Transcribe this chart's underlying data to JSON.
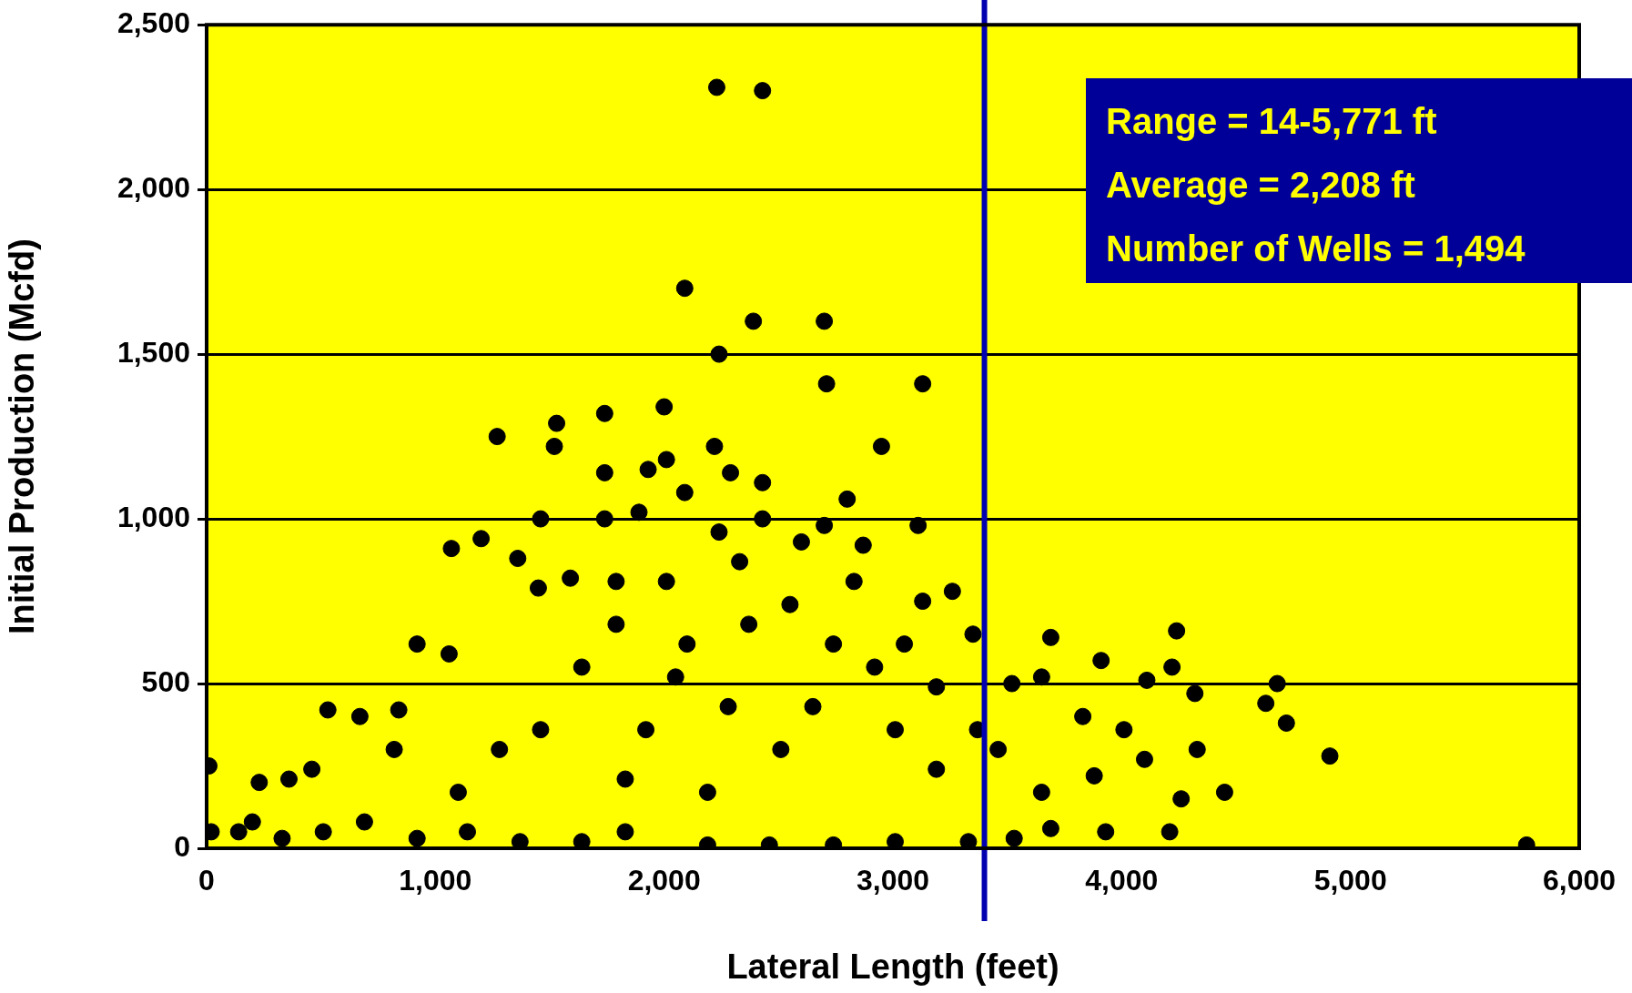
{
  "chart_data": {
    "type": "scatter",
    "xlabel": "Lateral Length (feet)",
    "ylabel": "Initial Production (Mcfd)",
    "annotations": [
      "Range = 14-5,771 ft",
      "Average = 2,208 ft",
      "Number of Wells = 1,494"
    ],
    "xlim": [
      0,
      6000
    ],
    "xticks": [
      {
        "value": 0,
        "label": "0"
      },
      {
        "value": 1000,
        "label": "1,000"
      },
      {
        "value": 2000,
        "label": "2,000"
      },
      {
        "value": 3000,
        "label": "3,000"
      },
      {
        "value": 4000,
        "label": "4,000"
      },
      {
        "value": 5000,
        "label": "5,000"
      },
      {
        "value": 6000,
        "label": "6,000"
      }
    ],
    "ylim": [
      0,
      2500
    ],
    "yticks": [
      {
        "value": 0,
        "label": "0"
      },
      {
        "value": 500,
        "label": "500"
      },
      {
        "value": 1000,
        "label": "1,000"
      },
      {
        "value": 1500,
        "label": "1,500"
      },
      {
        "value": 2000,
        "label": "2,000"
      },
      {
        "value": 2500,
        "label": "2,500"
      }
    ],
    "grid": "y",
    "legend": false,
    "marker": "circle",
    "ref_lines": [
      {
        "axis": "x",
        "value": 3400,
        "color": "#0000b0"
      }
    ],
    "series": [
      {
        "color": "#000000",
        "x": [
          10,
          2430,
          2230,
          2090,
          2390,
          2700,
          2240,
          2710,
          3130,
          2000,
          1740,
          1530,
          1270,
          1520,
          2220,
          2950,
          2010,
          1740,
          2290,
          2430,
          1930,
          2090,
          2800,
          1070,
          1200,
          1460,
          1740,
          2430,
          3110,
          2700,
          1890,
          1360,
          2870,
          3260,
          3130,
          1450,
          1590,
          1790,
          3350,
          3690,
          4240,
          4680,
          4630,
          4720,
          4910,
          4450,
          5770,
          3910,
          4110,
          4320,
          4220,
          3520,
          3650,
          3880,
          4260,
          4210,
          3690,
          3930,
          3530,
          920,
          1060,
          840,
          670,
          530,
          360,
          230,
          460,
          20,
          140,
          200,
          330,
          510,
          690,
          920,
          1140,
          1370,
          1640,
          1830,
          2190,
          2460,
          2740,
          3010,
          3330,
          1920,
          2050,
          2280,
          2510,
          2650,
          1830,
          2190,
          2370,
          2550,
          2100,
          1640,
          1460,
          1280,
          1100,
          820,
          3010,
          3190,
          3460,
          4010,
          3650,
          2920,
          3190,
          2740,
          2330,
          2600,
          2240,
          2010,
          1790,
          3050,
          2830,
          3370,
          3830,
          4100,
          4330
        ],
        "values": [
          250,
          2300,
          2310,
          1700,
          1600,
          1600,
          1500,
          1410,
          1410,
          1340,
          1320,
          1290,
          1250,
          1220,
          1220,
          1220,
          1180,
          1140,
          1140,
          1110,
          1150,
          1080,
          1060,
          910,
          940,
          1000,
          1000,
          1000,
          980,
          980,
          1020,
          880,
          920,
          780,
          750,
          790,
          820,
          810,
          650,
          640,
          660,
          500,
          440,
          380,
          280,
          170,
          10,
          570,
          510,
          470,
          550,
          500,
          520,
          220,
          150,
          50,
          60,
          50,
          30,
          620,
          590,
          420,
          400,
          420,
          210,
          200,
          240,
          50,
          50,
          80,
          30,
          50,
          80,
          30,
          50,
          20,
          20,
          50,
          10,
          10,
          10,
          20,
          20,
          360,
          520,
          430,
          300,
          430,
          210,
          170,
          680,
          740,
          620,
          550,
          360,
          300,
          170,
          300,
          360,
          240,
          300,
          360,
          170,
          550,
          490,
          620,
          870,
          930,
          960,
          810,
          680,
          620,
          810,
          360,
          400,
          270,
          300
        ]
      }
    ]
  }
}
